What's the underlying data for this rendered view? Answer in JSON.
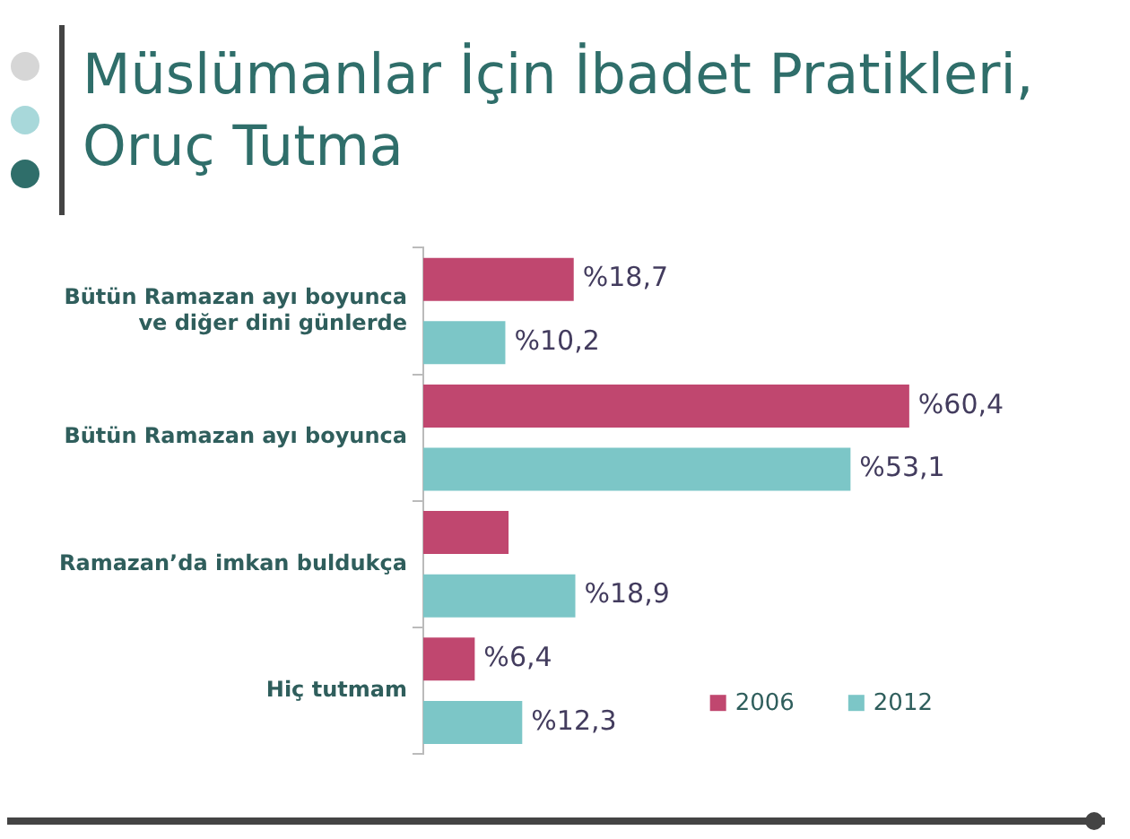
{
  "chart_data": {
    "type": "bar",
    "orientation": "horizontal",
    "title": "Müslümanlar İçin İbadet Pratikleri, Oruç Tutma",
    "categories": [
      "Bütün Ramazan ayı boyunca ve diğer dini günlerde",
      "Bütün Ramazan ayı boyunca",
      "Ramazan’da imkan buldukça",
      "Hiç tutmam"
    ],
    "series": [
      {
        "name": "2006",
        "color": "#c0476f",
        "values": [
          18.7,
          60.4,
          10.6,
          6.4
        ],
        "value_labels": [
          "%18,7",
          "%60,4",
          null,
          "%6,4"
        ]
      },
      {
        "name": "2012",
        "color": "#7cc6c7",
        "values": [
          10.2,
          53.1,
          18.9,
          12.3
        ],
        "value_labels": [
          "%10,2",
          "%53,1",
          "%18,9",
          "%12,3"
        ]
      }
    ],
    "legend": "bottom right",
    "grid": false
  }
}
